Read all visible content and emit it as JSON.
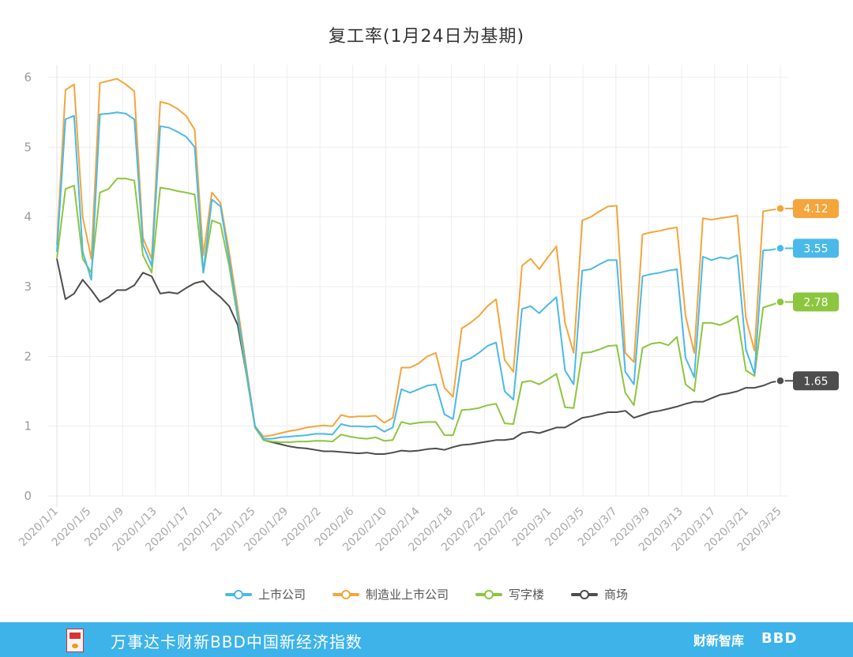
{
  "chart_data": {
    "type": "line",
    "title": "复工率(1月24日为基期)",
    "xlabel": "",
    "ylabel": "",
    "ylim": [
      0,
      6.2
    ],
    "yticks": [
      0,
      1,
      2,
      3,
      4,
      5,
      6
    ],
    "grid": true,
    "legend_position": "bottom",
    "x_tick_labels": [
      "2020/1/1",
      "2020/1/5",
      "2020/1/9",
      "2020/1/13",
      "2020/1/17",
      "2020/1/21",
      "2020/1/25",
      "2020/1/29",
      "2020/2/2",
      "2020/2/6",
      "2020/2/10",
      "2020/2/14",
      "2020/2/18",
      "2020/2/22",
      "2020/2/26",
      "2020/3/1",
      "2020/3/5",
      "2020/3/7",
      "2020/3/9",
      "2020/3/13",
      "2020/3/17",
      "2020/3/21",
      "2020/3/25"
    ],
    "series": [
      {
        "name": "上市公司",
        "color": "#4ab9ea",
        "end_label": "3.55",
        "values": [
          3.5,
          5.4,
          5.45,
          3.5,
          3.1,
          5.47,
          5.48,
          5.5,
          5.48,
          5.4,
          3.6,
          3.3,
          5.3,
          5.28,
          5.22,
          5.15,
          5.0,
          3.2,
          4.25,
          4.15,
          3.4,
          2.6,
          1.8,
          1.0,
          0.82,
          0.82,
          0.84,
          0.85,
          0.86,
          0.87,
          0.89,
          0.89,
          0.88,
          1.03,
          1.0,
          1.0,
          0.99,
          1.0,
          0.92,
          0.98,
          1.53,
          1.48,
          1.53,
          1.58,
          1.6,
          1.17,
          1.1,
          1.93,
          1.97,
          2.05,
          2.15,
          2.2,
          1.5,
          1.38,
          2.68,
          2.72,
          2.62,
          2.74,
          2.85,
          1.8,
          1.6,
          3.23,
          3.25,
          3.32,
          3.38,
          3.38,
          1.78,
          1.6,
          3.15,
          3.18,
          3.2,
          3.23,
          3.25,
          1.98,
          1.7,
          3.43,
          3.38,
          3.42,
          3.4,
          3.45,
          2.1,
          1.75,
          3.52,
          3.53,
          3.55
        ]
      },
      {
        "name": "制造业上市公司",
        "color": "#f4a53b",
        "end_label": "4.12",
        "values": [
          3.6,
          5.82,
          5.9,
          4.0,
          3.4,
          5.92,
          5.95,
          5.98,
          5.9,
          5.8,
          3.7,
          3.4,
          5.65,
          5.62,
          5.55,
          5.45,
          5.25,
          3.45,
          4.35,
          4.2,
          3.5,
          2.7,
          1.85,
          1.0,
          0.85,
          0.87,
          0.9,
          0.93,
          0.95,
          0.98,
          1.0,
          1.01,
          1.0,
          1.16,
          1.13,
          1.14,
          1.14,
          1.15,
          1.05,
          1.12,
          1.84,
          1.84,
          1.9,
          2.0,
          2.05,
          1.55,
          1.42,
          2.4,
          2.48,
          2.58,
          2.72,
          2.82,
          1.95,
          1.78,
          3.3,
          3.4,
          3.25,
          3.42,
          3.58,
          2.48,
          2.05,
          3.95,
          4.0,
          4.08,
          4.15,
          4.16,
          2.05,
          1.92,
          3.75,
          3.78,
          3.8,
          3.83,
          3.85,
          2.58,
          2.05,
          3.98,
          3.96,
          3.98,
          4.0,
          4.02,
          2.55,
          2.08,
          4.08,
          4.1,
          4.12
        ]
      },
      {
        "name": "写字楼",
        "color": "#8cc63e",
        "end_label": "2.78",
        "values": [
          3.4,
          4.4,
          4.45,
          3.4,
          3.2,
          4.35,
          4.4,
          4.55,
          4.55,
          4.52,
          3.45,
          3.2,
          4.42,
          4.4,
          4.37,
          4.35,
          4.32,
          3.2,
          3.95,
          3.9,
          3.3,
          2.55,
          1.75,
          0.98,
          0.8,
          0.78,
          0.77,
          0.77,
          0.78,
          0.78,
          0.79,
          0.79,
          0.78,
          0.88,
          0.85,
          0.83,
          0.82,
          0.84,
          0.79,
          0.8,
          1.06,
          1.03,
          1.05,
          1.06,
          1.06,
          0.87,
          0.87,
          1.23,
          1.24,
          1.26,
          1.3,
          1.32,
          1.04,
          1.03,
          1.63,
          1.65,
          1.6,
          1.67,
          1.75,
          1.27,
          1.26,
          2.05,
          2.06,
          2.1,
          2.15,
          2.16,
          1.48,
          1.3,
          2.12,
          2.18,
          2.2,
          2.16,
          2.28,
          1.6,
          1.5,
          2.48,
          2.48,
          2.45,
          2.5,
          2.58,
          1.8,
          1.72,
          2.7,
          2.74,
          2.78
        ]
      },
      {
        "name": "商场",
        "color": "#4d4d4d",
        "end_label": "1.65",
        "values": [
          3.4,
          2.82,
          2.9,
          3.1,
          2.95,
          2.78,
          2.85,
          2.95,
          2.95,
          3.02,
          3.2,
          3.15,
          2.9,
          2.92,
          2.9,
          2.98,
          3.05,
          3.08,
          2.95,
          2.85,
          2.72,
          2.45,
          1.75,
          1.0,
          0.8,
          0.77,
          0.74,
          0.71,
          0.69,
          0.68,
          0.66,
          0.64,
          0.64,
          0.63,
          0.62,
          0.61,
          0.62,
          0.6,
          0.6,
          0.62,
          0.65,
          0.64,
          0.65,
          0.67,
          0.68,
          0.66,
          0.7,
          0.73,
          0.74,
          0.76,
          0.78,
          0.8,
          0.8,
          0.82,
          0.9,
          0.92,
          0.9,
          0.94,
          0.98,
          0.98,
          1.05,
          1.12,
          1.14,
          1.17,
          1.2,
          1.2,
          1.22,
          1.12,
          1.16,
          1.2,
          1.22,
          1.25,
          1.28,
          1.32,
          1.35,
          1.35,
          1.4,
          1.45,
          1.47,
          1.5,
          1.55,
          1.55,
          1.58,
          1.63,
          1.65
        ]
      }
    ]
  },
  "footer": {
    "text": "万事达卡财新BBD中国新经济指数",
    "brand1": "财新智库",
    "brand2": "BBD"
  },
  "colors": {
    "footer_bg": "#3db3ea"
  }
}
